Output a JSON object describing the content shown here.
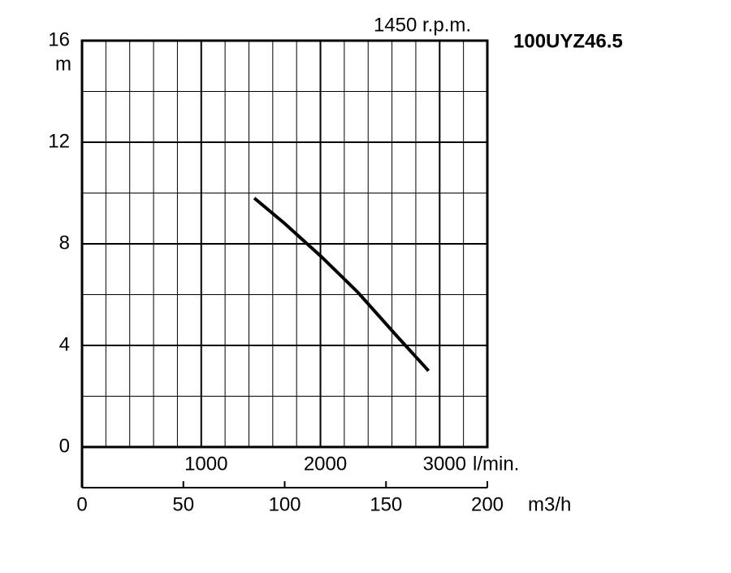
{
  "chart_data": {
    "type": "line",
    "title": "100UYZ46.5",
    "subtitle": "1450 r.p.m.",
    "y_label": "m",
    "x_label": "m3/h",
    "x2_label": "l/min.",
    "x": [
      85,
      100,
      118,
      136,
      155,
      171
    ],
    "series": [
      {
        "color": "#000000",
        "values": [
          9.8,
          8.8,
          7.5,
          6.1,
          4.4,
          3.0
        ]
      }
    ],
    "xlim": [
      0,
      200
    ],
    "xticks": [
      0,
      50,
      100,
      150,
      200
    ],
    "x2lim": [
      0,
      3400
    ],
    "x2ticks": [
      1000,
      2000,
      3000
    ],
    "x2minor_ticks": [
      200,
      400,
      600,
      800,
      1200,
      1400,
      1600,
      1800,
      2200,
      2400,
      2600,
      2800,
      3200
    ],
    "ylim": [
      0,
      16
    ],
    "yticks": [
      0,
      4,
      8,
      12,
      16
    ],
    "yminor_ticks": [
      2,
      6,
      10,
      14
    ],
    "grid": true
  }
}
